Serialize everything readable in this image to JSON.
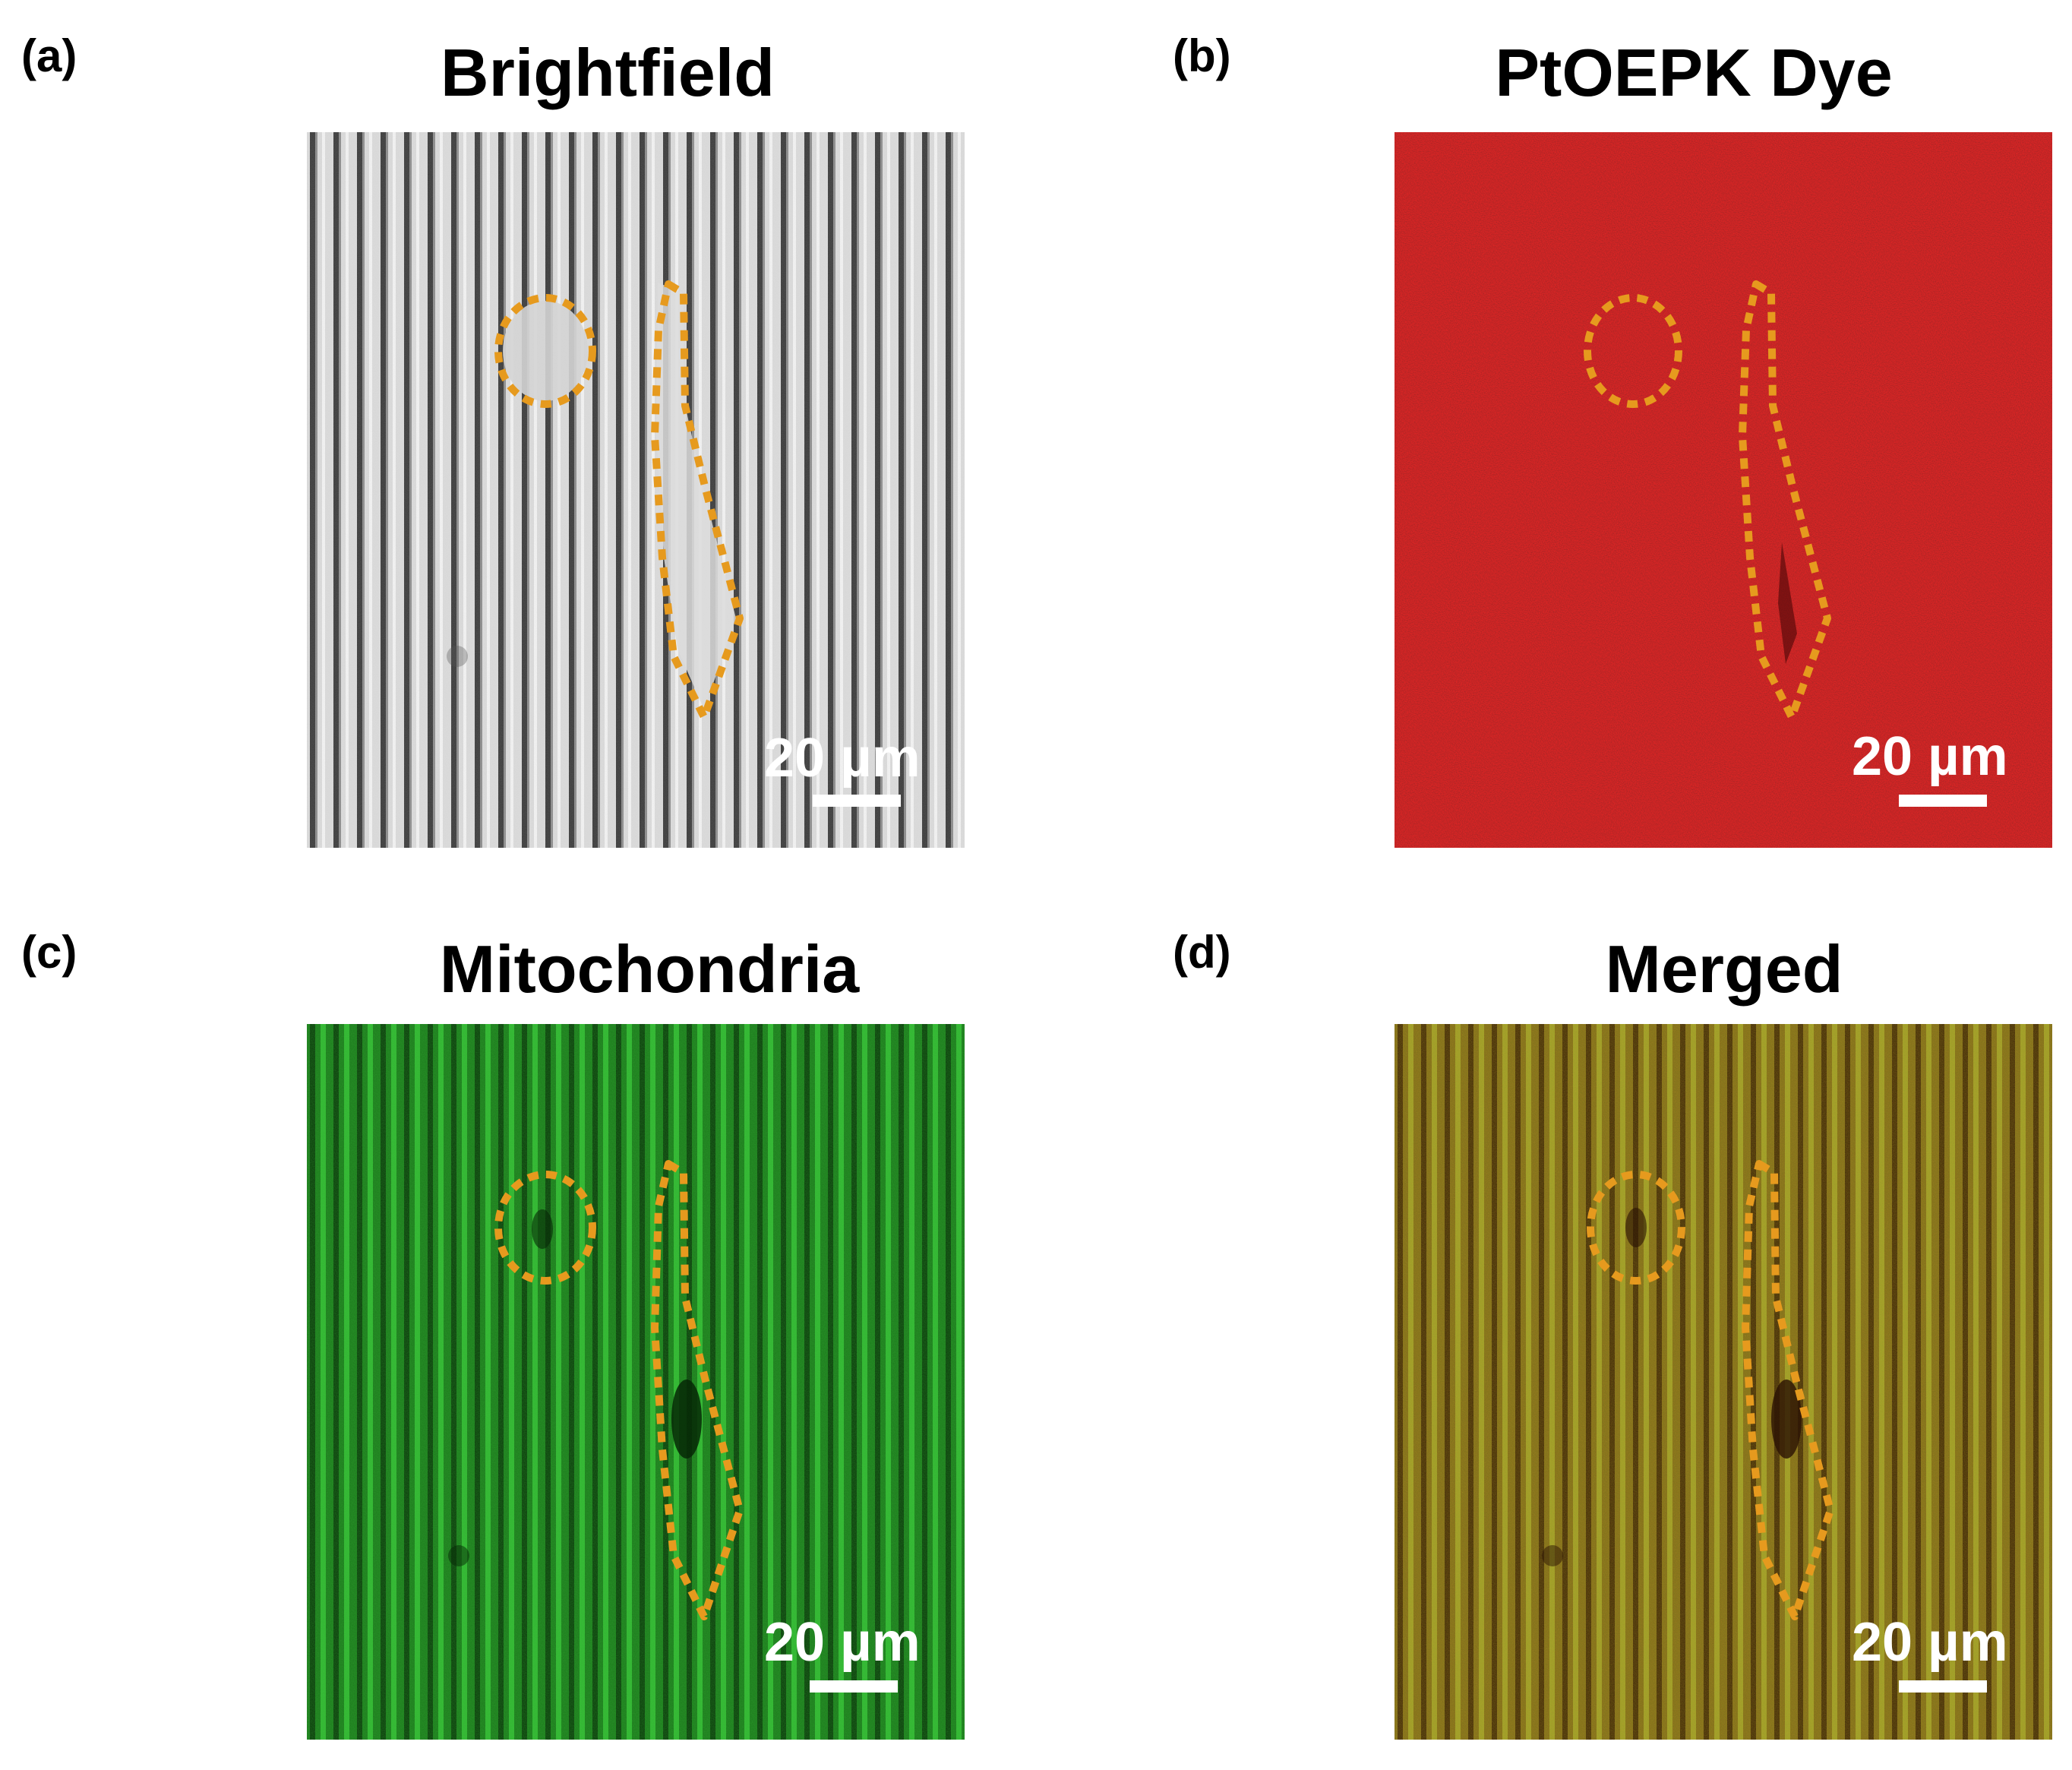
{
  "panels": [
    {
      "letter": "(a)",
      "title": "Brightfield",
      "scale": "20 µm"
    },
    {
      "letter": "(b)",
      "title": "PtOEPK Dye",
      "scale": "20 µm"
    },
    {
      "letter": "(c)",
      "title": "Mitochondria",
      "scale": "20 µm"
    },
    {
      "letter": "(d)",
      "title": "Merged",
      "scale": "20 µm"
    }
  ],
  "colors": {
    "outline": "#e69a1e",
    "brightfield_bg": "#d9d9d9",
    "dye_bg": "#b81414",
    "mito_bg": "#1f8a1f",
    "merged_bg": "#8a7a1c"
  }
}
